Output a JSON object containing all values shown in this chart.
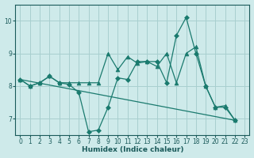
{
  "xlabel": "Humidex (Indice chaleur)",
  "bg_color": "#ceeaea",
  "line_color": "#1a7a6e",
  "grid_color": "#a8cfcf",
  "xlim": [
    -0.5,
    23.5
  ],
  "ylim": [
    6.5,
    10.5
  ],
  "yticks": [
    7,
    8,
    9,
    10
  ],
  "xticks": [
    0,
    1,
    2,
    3,
    4,
    5,
    6,
    7,
    8,
    9,
    10,
    11,
    12,
    13,
    14,
    15,
    16,
    17,
    18,
    19,
    20,
    21,
    22,
    23
  ],
  "series": [
    {
      "x": [
        0,
        1,
        2,
        3,
        4,
        5,
        6,
        7,
        8,
        9,
        10,
        11,
        12,
        13,
        14,
        15,
        16,
        17,
        18,
        19,
        20,
        21,
        22
      ],
      "y": [
        8.2,
        8.0,
        8.1,
        8.3,
        8.1,
        8.05,
        7.8,
        6.6,
        6.65,
        7.35,
        8.25,
        8.2,
        8.75,
        8.75,
        8.75,
        8.1,
        9.55,
        10.1,
        9.0,
        8.0,
        7.35,
        7.35,
        6.95
      ],
      "marker": "D",
      "markersize": 3.0
    },
    {
      "x": [
        0,
        1,
        2,
        3,
        4,
        5,
        6,
        7,
        8,
        9,
        10,
        11,
        12,
        13,
        14,
        15,
        16,
        17,
        18,
        19,
        20,
        21,
        22
      ],
      "y": [
        8.2,
        8.0,
        8.1,
        8.3,
        8.1,
        8.1,
        8.1,
        8.1,
        8.1,
        9.0,
        8.5,
        8.9,
        8.7,
        8.75,
        8.6,
        9.0,
        8.1,
        9.0,
        9.2,
        8.0,
        7.35,
        7.4,
        6.95
      ],
      "marker": "^",
      "markersize": 3.5
    },
    {
      "x": [
        0,
        22
      ],
      "y": [
        8.2,
        6.95
      ],
      "marker": "none",
      "markersize": 0
    }
  ]
}
